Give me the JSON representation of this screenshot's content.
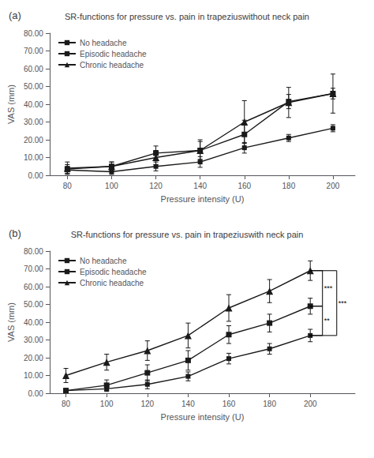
{
  "chart_data": [
    {
      "type": "line",
      "title": "SR-functions for pressure vs. pain in trapeziuswithout neck pain",
      "x_label": "Pressure intensity (U)",
      "y_label": "VAS (mm)",
      "x": [
        80,
        100,
        120,
        140,
        160,
        180,
        200
      ],
      "series": [
        {
          "name": "No headache",
          "color": "#1a1a1a",
          "marker": "square",
          "values": [
            3.0,
            2.0,
            5.0,
            7.5,
            15.5,
            21.0,
            26.5
          ],
          "errors": [
            2.0,
            1.5,
            2.5,
            3.0,
            3.0,
            2.0,
            2.0
          ]
        },
        {
          "name": "Episodic headache",
          "color": "#1a1a1a",
          "marker": "square",
          "values": [
            3.5,
            5.0,
            12.5,
            14.0,
            23.0,
            41.5,
            46.0
          ],
          "errors": [
            2.5,
            2.5,
            4.0,
            5.0,
            8.0,
            4.0,
            3.0
          ]
        },
        {
          "name": "Chronic headache",
          "color": "#1a1a1a",
          "marker": "triangle",
          "values": [
            4.0,
            5.0,
            10.0,
            14.0,
            30.0,
            41.0,
            46.0
          ],
          "errors": [
            3.5,
            2.5,
            4.0,
            6.0,
            12.0,
            8.5,
            11.0
          ]
        }
      ],
      "xlim": [
        72,
        210
      ],
      "xticks": [
        80,
        100,
        120,
        140,
        160,
        180,
        200
      ],
      "ylim": [
        0,
        80
      ],
      "yticks": [
        {
          "value": 0,
          "label": "0.00"
        },
        {
          "value": 10,
          "label": "10.00"
        },
        {
          "value": 20,
          "label": "20.00"
        },
        {
          "value": 30,
          "label": "30.00"
        },
        {
          "value": 40,
          "label": "40.00"
        },
        {
          "value": 50,
          "label": "50.00"
        },
        {
          "value": 60,
          "label": "60.00"
        },
        {
          "value": 70,
          "label": "70.00"
        },
        {
          "value": 80,
          "label": "80.00"
        }
      ],
      "grid": false,
      "legend": "upper left",
      "annotations": [
        {
          "text": "(a)"
        }
      ]
    },
    {
      "type": "line",
      "title": "SR-functions for pressure vs. pain in trapeziuswith neck pain",
      "x_label": "Pressure intensity (U)",
      "y_label": "VAS (mm)",
      "x": [
        80,
        100,
        120,
        140,
        160,
        180,
        200
      ],
      "series": [
        {
          "name": "No headache",
          "color": "#1a1a1a",
          "marker": "square",
          "values": [
            1.5,
            2.5,
            5.0,
            9.5,
            19.5,
            25.0,
            32.5
          ],
          "errors": [
            1.0,
            1.5,
            2.5,
            2.5,
            3.0,
            3.0,
            3.5
          ]
        },
        {
          "name": "Episodic headache",
          "color": "#1a1a1a",
          "marker": "square",
          "values": [
            1.5,
            4.5,
            11.5,
            18.5,
            33.0,
            39.5,
            49.0
          ],
          "errors": [
            1.0,
            3.0,
            4.5,
            5.5,
            5.0,
            5.0,
            4.5
          ]
        },
        {
          "name": "Chronic headache",
          "color": "#1a1a1a",
          "marker": "triangle",
          "values": [
            10.0,
            17.5,
            24.0,
            32.5,
            48.0,
            57.5,
            69.0
          ],
          "errors": [
            4.0,
            4.5,
            5.5,
            7.0,
            7.5,
            6.5,
            5.5
          ]
        }
      ],
      "xlim": [
        72,
        222
      ],
      "xticks": [
        80,
        100,
        120,
        140,
        160,
        180,
        200
      ],
      "ylim": [
        0,
        80
      ],
      "yticks": [
        {
          "value": 0,
          "label": "0.00"
        },
        {
          "value": 10,
          "label": "10.00"
        },
        {
          "value": 20,
          "label": "20.00"
        },
        {
          "value": 30,
          "label": "30.00"
        },
        {
          "value": 40,
          "label": "40.00"
        },
        {
          "value": 50,
          "label": "50.00"
        },
        {
          "value": 60,
          "label": "60.00"
        },
        {
          "value": 70,
          "label": "70.00"
        },
        {
          "value": 80,
          "label": "80.00"
        }
      ],
      "grid": false,
      "legend": "upper left",
      "annotations": [
        {
          "text": "(b)"
        },
        {
          "text": "***",
          "x": [
            200,
            206
          ],
          "y": [
            49.0,
            69.0
          ]
        },
        {
          "text": "**",
          "x": [
            200,
            206
          ],
          "y": [
            32.5,
            49.0
          ]
        },
        {
          "text": "***",
          "x": [
            200,
            213
          ],
          "y": [
            32.5,
            69.0
          ]
        }
      ]
    }
  ]
}
